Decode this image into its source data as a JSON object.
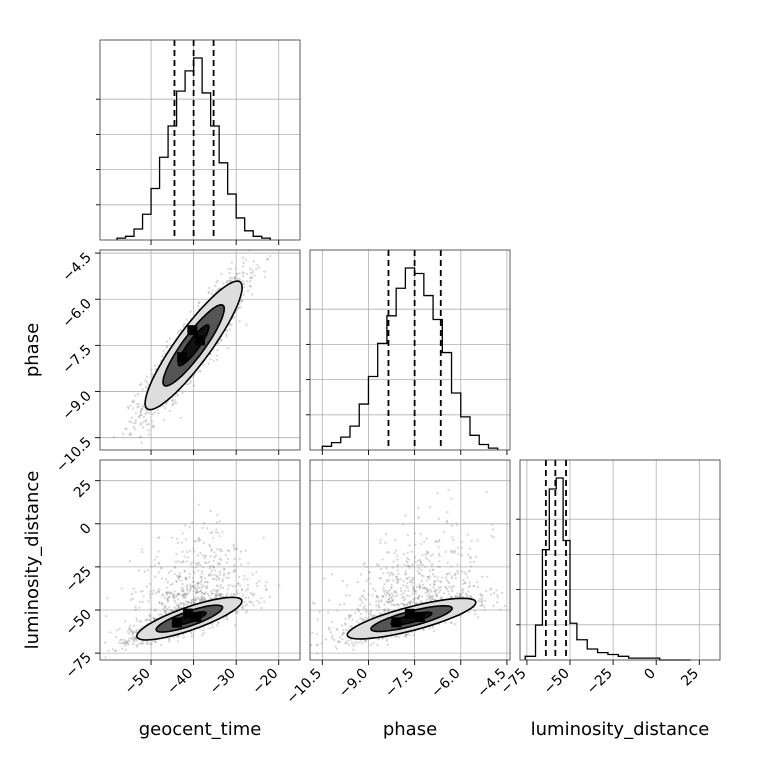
{
  "chart_data": {
    "type": "corner",
    "parameters": [
      "geocent_time",
      "phase",
      "luminosity_distance"
    ],
    "axis_labels": [
      "geocent_time",
      "phase",
      "luminosity_distance"
    ],
    "grid": true,
    "colors": {
      "line": "#000000",
      "scatter": "#888888",
      "contour_dark": "#111111",
      "contour_mid": "#555555",
      "contour_light": "#dddddd"
    },
    "ranges": {
      "geocent_time": [
        -62,
        -15
      ],
      "phase": [
        -10.9,
        -4.4
      ],
      "luminosity_distance": [
        -79,
        37
      ]
    },
    "ticks": {
      "geocent_time": [
        -50,
        -40,
        -30,
        -20
      ],
      "phase": [
        -10.5,
        -9.0,
        -7.5,
        -6.0,
        -4.5
      ],
      "luminosity_distance": [
        -75,
        -50,
        -25,
        0,
        25
      ]
    },
    "tick_labels": {
      "geocent_time": [
        "−50",
        "−40",
        "−30",
        "−20"
      ],
      "phase": [
        "−10.5",
        "−9.0",
        "−7.5",
        "−6.0",
        "−4.5"
      ],
      "luminosity_distance": [
        "−75",
        "−50",
        "−25",
        "0",
        "25"
      ]
    },
    "quantiles": {
      "geocent_time": [
        -44.5,
        -40.0,
        -35.3
      ],
      "phase": [
        -8.35,
        -7.5,
        -6.65
      ],
      "luminosity_distance": [
        -64.0,
        -58.5,
        -52.3
      ]
    },
    "histograms": {
      "geocent_time": {
        "edges": [
          -58,
          -56,
          -54,
          -52,
          -50,
          -48,
          -46,
          -44,
          -42,
          -40,
          -38,
          -36,
          -34,
          -32,
          -30,
          -28,
          -26,
          -24,
          -22
        ],
        "counts": [
          0.01,
          0.02,
          0.06,
          0.14,
          0.28,
          0.45,
          0.62,
          0.81,
          0.92,
          0.99,
          0.8,
          0.62,
          0.42,
          0.25,
          0.12,
          0.05,
          0.02,
          0.01
        ]
      },
      "phase": {
        "edges": [
          -10.5,
          -10.2,
          -9.9,
          -9.6,
          -9.3,
          -9.0,
          -8.7,
          -8.4,
          -8.1,
          -7.8,
          -7.5,
          -7.2,
          -6.9,
          -6.6,
          -6.3,
          -6.0,
          -5.7,
          -5.4,
          -5.1,
          -4.8
        ],
        "counts": [
          0.02,
          0.04,
          0.07,
          0.13,
          0.25,
          0.4,
          0.58,
          0.73,
          0.88,
          0.99,
          0.96,
          0.84,
          0.71,
          0.53,
          0.31,
          0.18,
          0.08,
          0.03,
          0.01
        ]
      },
      "luminosity_distance": {
        "edges": [
          -76,
          -70,
          -66,
          -62,
          -58,
          -54,
          -50,
          -46,
          -40,
          -34,
          -28,
          -22,
          -16,
          -10,
          -4,
          2,
          8,
          14,
          20
        ],
        "counts": [
          0.02,
          0.19,
          0.6,
          0.93,
          0.99,
          0.65,
          0.2,
          0.11,
          0.06,
          0.04,
          0.03,
          0.02,
          0.01,
          0.01,
          0.01,
          0.0,
          0.0,
          0.0
        ]
      }
    },
    "joint": {
      "phase_vs_geocent_time": {
        "mean": [
          -40,
          -7.5
        ],
        "sd": [
          6.0,
          1.1
        ],
        "rho": 0.9,
        "contour_levels_sigma": [
          0.6,
          1.2,
          1.9
        ]
      },
      "luminosity_distance_vs_geocent_time": {
        "mean": [
          -41,
          -55
        ],
        "sd": [
          6.5,
          6.5
        ],
        "rho": 0.82,
        "contour_levels_sigma": [
          0.6,
          1.2,
          1.9
        ]
      },
      "luminosity_distance_vs_phase": {
        "mean": [
          -7.6,
          -55
        ],
        "sd": [
          1.1,
          6.2
        ],
        "rho": 0.8,
        "contour_levels_sigma": [
          0.6,
          1.2,
          1.9
        ]
      }
    }
  }
}
